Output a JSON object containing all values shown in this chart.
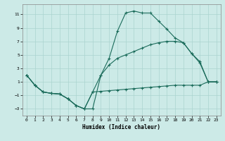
{
  "xlabel": "Humidex (Indice chaleur)",
  "bg_color": "#cceae7",
  "grid_color": "#aad4d0",
  "line_color": "#1a6b5a",
  "xlim": [
    -0.5,
    23.5
  ],
  "ylim": [
    -4.0,
    12.5
  ],
  "xticks": [
    0,
    1,
    2,
    3,
    4,
    5,
    6,
    7,
    8,
    9,
    10,
    11,
    12,
    13,
    14,
    15,
    16,
    17,
    18,
    19,
    20,
    21,
    22,
    23
  ],
  "yticks": [
    -3,
    -1,
    1,
    3,
    5,
    7,
    9,
    11
  ],
  "line1_x": [
    0,
    1,
    2,
    3,
    4,
    5,
    6,
    7,
    8,
    9,
    10,
    11,
    12,
    13,
    14,
    15,
    16,
    17,
    18,
    19,
    20,
    21,
    22,
    23
  ],
  "line1_y": [
    2.0,
    0.5,
    -0.5,
    -0.7,
    -0.8,
    -1.5,
    -2.5,
    -3.0,
    -3.0,
    2.0,
    4.5,
    8.5,
    11.2,
    11.5,
    11.2,
    11.2,
    10.0,
    8.8,
    7.5,
    6.8,
    5.2,
    4.0,
    1.0,
    1.0
  ],
  "line2_x": [
    0,
    1,
    2,
    3,
    4,
    5,
    6,
    7,
    8,
    9,
    10,
    11,
    12,
    13,
    14,
    15,
    16,
    17,
    18,
    19,
    20,
    21,
    22,
    23
  ],
  "line2_y": [
    2.0,
    0.5,
    -0.5,
    -0.7,
    -0.8,
    -1.5,
    -2.5,
    -3.0,
    -0.5,
    2.0,
    3.5,
    4.5,
    5.0,
    5.5,
    6.0,
    6.5,
    6.8,
    7.0,
    7.0,
    6.8,
    5.2,
    3.8,
    1.0,
    1.0
  ],
  "line3_x": [
    0,
    1,
    2,
    3,
    4,
    5,
    6,
    7,
    8,
    9,
    10,
    11,
    12,
    13,
    14,
    15,
    16,
    17,
    18,
    19,
    20,
    21,
    22,
    23
  ],
  "line3_y": [
    2.0,
    0.5,
    -0.5,
    -0.7,
    -0.8,
    -1.5,
    -2.5,
    -3.0,
    -0.5,
    -0.4,
    -0.3,
    -0.2,
    -0.1,
    0.0,
    0.1,
    0.2,
    0.3,
    0.4,
    0.5,
    0.5,
    0.5,
    0.5,
    1.0,
    1.0
  ]
}
